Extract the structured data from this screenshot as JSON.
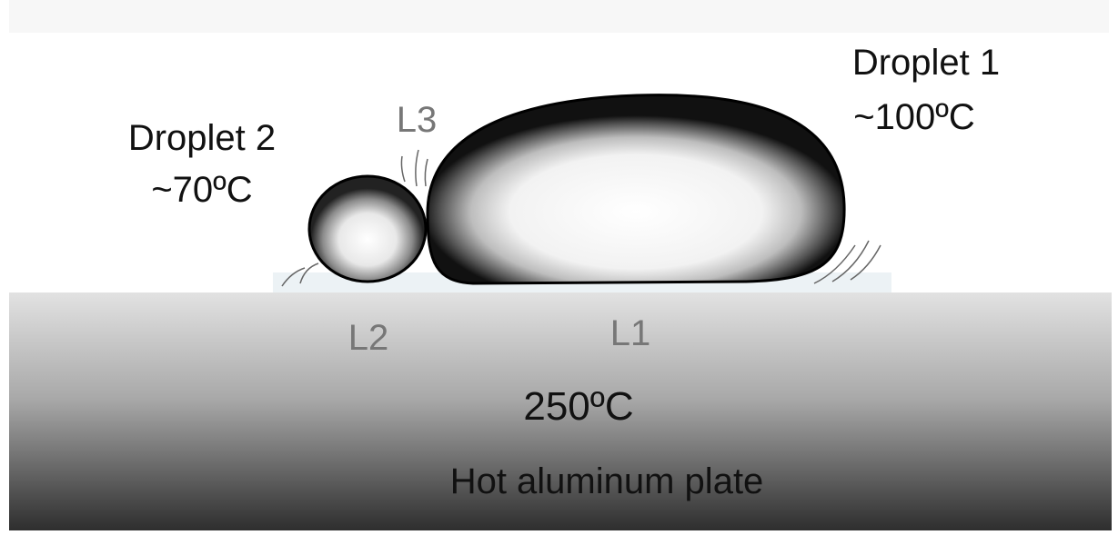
{
  "labels": {
    "droplet1_name": "Droplet 1",
    "droplet1_temp": "~100ºC",
    "droplet2_name": "Droplet 2",
    "droplet2_temp": "~70ºC",
    "l1": "L1",
    "l2": "L2",
    "l3": "L3",
    "plate_temp": "250ºC",
    "plate_name": "Hot aluminum plate"
  }
}
